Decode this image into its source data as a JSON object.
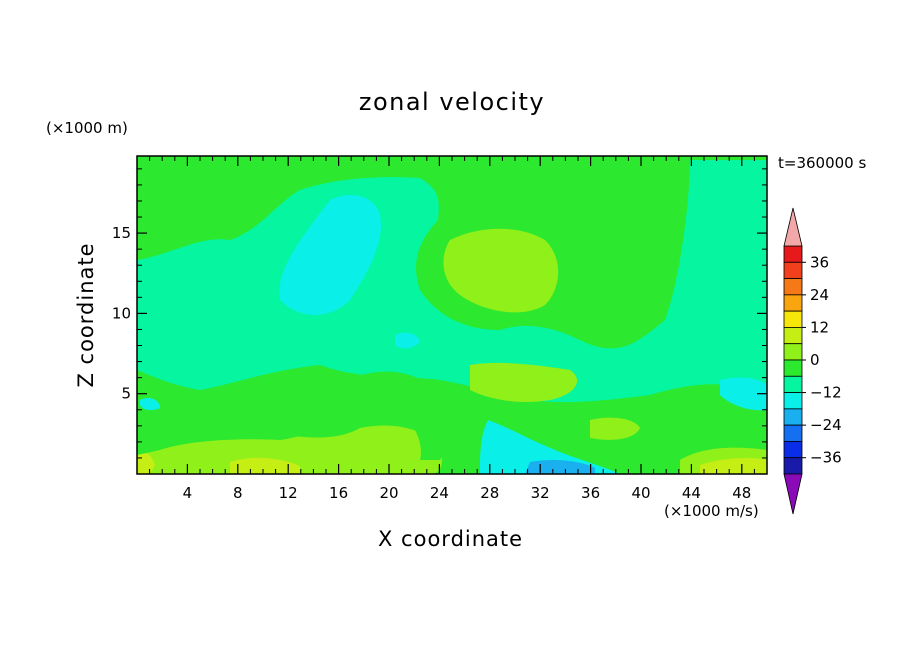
{
  "chart_data": {
    "type": "heatmap",
    "title": "zonal velocity",
    "xlabel": "X coordinate",
    "ylabel": "Z coordinate",
    "x_unit": "(×1000 m/s)",
    "y_unit": "(×1000 m)",
    "time_label": "t=360000 s",
    "xlim": [
      0,
      50
    ],
    "ylim": [
      0,
      19.8
    ],
    "x_ticks": [
      4,
      8,
      12,
      16,
      20,
      24,
      28,
      32,
      36,
      40,
      44,
      48
    ],
    "y_ticks": [
      5,
      10,
      15
    ],
    "colorbar": {
      "range": [
        -42,
        42
      ],
      "interval": 6,
      "tick_values": [
        36,
        24,
        12,
        0,
        -12,
        -24,
        -36
      ],
      "tick_labels": [
        "36",
        "24",
        "12",
        "0",
        "−12",
        "−24",
        "−36"
      ],
      "levels": [
        {
          "range": [
            36,
            42
          ],
          "color": "#e8191b"
        },
        {
          "range": [
            30,
            36
          ],
          "color": "#f2401d"
        },
        {
          "range": [
            24,
            30
          ],
          "color": "#f57a17"
        },
        {
          "range": [
            18,
            24
          ],
          "color": "#f9a510"
        },
        {
          "range": [
            12,
            18
          ],
          "color": "#f7e60a"
        },
        {
          "range": [
            6,
            12
          ],
          "color": "#c5ee14"
        },
        {
          "range": [
            0,
            6
          ],
          "color": "#8ff01a"
        },
        {
          "range": [
            -6,
            0
          ],
          "color": "#2ce82e"
        },
        {
          "range": [
            -12,
            -6
          ],
          "color": "#05f5a0"
        },
        {
          "range": [
            -18,
            -12
          ],
          "color": "#0af0e8"
        },
        {
          "range": [
            -24,
            -18
          ],
          "color": "#1ab0f0"
        },
        {
          "range": [
            -30,
            -24
          ],
          "color": "#1470f0"
        },
        {
          "range": [
            -36,
            -30
          ],
          "color": "#0a2ee8"
        },
        {
          "range": [
            -42,
            -36
          ],
          "color": "#1a1aaa"
        }
      ],
      "over_color": "#f2a8a8",
      "under_color": "#8a0ab8"
    },
    "field_colors": {
      "c_pos6": "#8ff01a",
      "c_pos12": "#c5ee14",
      "c_pos18": "#f7e60a",
      "c_0": "#2ce82e",
      "c_neg6": "#05f5a0",
      "c_neg12": "#0af0e8",
      "c_neg18": "#1ab0f0",
      "c_neg24": "#1470f0"
    }
  }
}
